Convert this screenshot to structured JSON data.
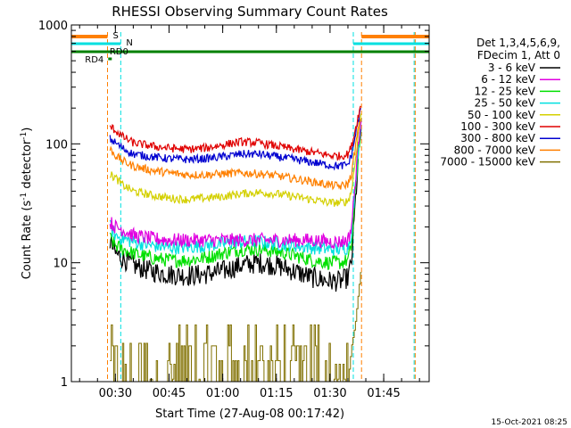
{
  "chart_data": {
    "type": "line",
    "title": "RHESSI Observing Summary Count Rates",
    "xlabel": "Start Time (27-Aug-08 00:17:42)",
    "ylabel_main": "Count Rate (s",
    "ylabel_sup1": "-1",
    "ylabel_mid": " detector",
    "ylabel_sup2": "-1",
    "ylabel_end": ")",
    "yscale": "log",
    "ylim": [
      1,
      1000
    ],
    "xlim_minutes": [
      17.7,
      117.7
    ],
    "y_ticks": [
      {
        "value": 1,
        "label": "1"
      },
      {
        "value": 10,
        "label": "10"
      },
      {
        "value": 100,
        "label": "100"
      },
      {
        "value": 1000,
        "label": "1000"
      }
    ],
    "x_ticks": [
      {
        "minute": 30,
        "label": "00:30"
      },
      {
        "minute": 45,
        "label": "00:45"
      },
      {
        "minute": 60,
        "label": "01:00"
      },
      {
        "minute": 75,
        "label": "01:15"
      },
      {
        "minute": 90,
        "label": "01:30"
      },
      {
        "minute": 105,
        "label": "01:45"
      }
    ],
    "legend_header": [
      "Det 1,3,4,5,6,9,",
      "FDecim 1, Att 0"
    ],
    "legend_position": "right",
    "data_start_minute": 28.5,
    "data_end_minute": 98.8,
    "series": [
      {
        "name": "3 - 6 keV",
        "color": "#000000",
        "x": [
          28.5,
          30,
          32,
          35,
          40,
          45,
          50,
          55,
          60,
          65,
          70,
          75,
          80,
          85,
          90,
          93,
          95,
          96,
          97,
          98,
          98.8
        ],
        "y": [
          15,
          12,
          11,
          9.5,
          8.5,
          8,
          7.8,
          8,
          8.5,
          9.5,
          10,
          9.5,
          8.5,
          7.5,
          7,
          7,
          7.5,
          10,
          30,
          80,
          150
        ]
      },
      {
        "name": "6 - 12 keV",
        "color": "#e000e0",
        "x": [
          28.5,
          30,
          32,
          35,
          40,
          45,
          50,
          55,
          60,
          65,
          70,
          75,
          80,
          85,
          90,
          93,
          95,
          96,
          97,
          98,
          98.8
        ],
        "y": [
          22,
          20,
          19,
          17,
          16,
          15.5,
          15.5,
          15.5,
          15.5,
          15.5,
          15.5,
          15.5,
          15.5,
          15.5,
          15,
          15,
          15.5,
          20,
          45,
          110,
          185
        ]
      },
      {
        "name": "12 - 25 keV",
        "color": "#00e000",
        "x": [
          28.5,
          30,
          32,
          35,
          40,
          45,
          50,
          55,
          60,
          65,
          70,
          75,
          80,
          85,
          90,
          93,
          95,
          96,
          97,
          98,
          98.8
        ],
        "y": [
          16,
          14,
          13,
          12,
          11,
          10.5,
          10.5,
          11,
          12,
          13,
          13,
          12.5,
          11.5,
          10.5,
          10,
          10,
          10.5,
          14,
          35,
          90,
          160
        ]
      },
      {
        "name": "25 - 50 keV",
        "color": "#00e0e0",
        "x": [
          28.5,
          30,
          32,
          35,
          40,
          45,
          50,
          55,
          60,
          65,
          70,
          75,
          80,
          85,
          90,
          93,
          95,
          96,
          97,
          98,
          98.8
        ],
        "y": [
          20,
          17,
          16,
          15,
          14,
          13.5,
          13.5,
          14,
          14.5,
          15,
          15,
          14.5,
          14,
          13.5,
          13,
          13,
          13.5,
          18,
          40,
          100,
          170
        ]
      },
      {
        "name": "50 - 100 keV",
        "color": "#d4d000",
        "x": [
          28.5,
          30,
          32,
          35,
          40,
          45,
          50,
          55,
          60,
          65,
          70,
          75,
          80,
          85,
          90,
          93,
          95,
          96,
          97,
          98,
          98.8
        ],
        "y": [
          55,
          52,
          45,
          40,
          37,
          35,
          34,
          35,
          36,
          38,
          39,
          38,
          36,
          34,
          32,
          32,
          33,
          40,
          70,
          130,
          190
        ]
      },
      {
        "name": "100 - 300 keV",
        "color": "#e00000",
        "x": [
          28.5,
          30,
          32,
          35,
          40,
          45,
          50,
          55,
          60,
          65,
          70,
          75,
          80,
          85,
          90,
          93,
          95,
          96,
          97,
          98,
          98.8
        ],
        "y": [
          140,
          130,
          115,
          102,
          96,
          92,
          90,
          92,
          98,
          104,
          102,
          96,
          90,
          85,
          80,
          79,
          82,
          95,
          130,
          180,
          215
        ]
      },
      {
        "name": "300 - 800 keV",
        "color": "#0000d0",
        "x": [
          28.5,
          30,
          32,
          35,
          40,
          45,
          50,
          55,
          60,
          65,
          70,
          75,
          80,
          85,
          90,
          93,
          95,
          96,
          97,
          98,
          98.8
        ],
        "y": [
          110,
          102,
          92,
          82,
          78,
          75,
          74,
          75,
          78,
          82,
          82,
          78,
          74,
          70,
          66,
          65,
          67,
          80,
          115,
          165,
          200
        ]
      },
      {
        "name": "800 - 7000 keV",
        "color": "#ff8000",
        "x": [
          28.5,
          30,
          32,
          35,
          40,
          45,
          50,
          55,
          60,
          65,
          70,
          75,
          80,
          85,
          90,
          93,
          95,
          96,
          97,
          98,
          98.8
        ],
        "y": [
          90,
          80,
          72,
          65,
          60,
          57,
          55,
          55,
          56,
          57,
          56,
          54,
          51,
          48,
          45,
          44,
          46,
          55,
          90,
          140,
          175
        ]
      },
      {
        "name": "7000 - 15000 keV",
        "color": "#807000",
        "x": [
          28.5,
          29.5,
          30.5,
          31.5,
          40,
          41,
          42,
          44,
          46,
          48,
          50,
          52,
          54,
          56,
          58,
          60,
          62,
          64,
          66,
          68,
          70,
          72,
          74,
          76,
          78,
          80,
          82,
          84,
          86,
          95,
          96,
          97,
          98,
          98.8
        ],
        "y": [
          2,
          3,
          2,
          1,
          1,
          2,
          1.5,
          2,
          1,
          2,
          1.5,
          2,
          1,
          2,
          1.5,
          2,
          2,
          1.5,
          2,
          1.5,
          3,
          2,
          1.5,
          2,
          2,
          1.5,
          2,
          1.5,
          2,
          1,
          2,
          3,
          6,
          10
        ]
      }
    ],
    "status_bars": [
      {
        "label": "S",
        "color": "#ff8000",
        "segments": [
          [
            17.7,
            27.8
          ],
          [
            98.8,
            117.7
          ]
        ]
      },
      {
        "label": "N",
        "color": "#00e0e0",
        "segments": [
          [
            17.7,
            31.5
          ],
          [
            96.5,
            117.7
          ]
        ]
      },
      {
        "label": "RD0",
        "color": "#008000",
        "segments": [
          [
            17.7,
            117.7
          ]
        ]
      },
      {
        "label": "RD4",
        "color": "#008000",
        "segments": [
          [
            28.0,
            29.0
          ]
        ]
      }
    ],
    "vertical_markers": [
      {
        "minute": 27.8,
        "color": "#ff8000"
      },
      {
        "minute": 31.5,
        "color": "#00e0e0"
      },
      {
        "minute": 96.5,
        "color": "#00e0e0"
      },
      {
        "minute": 98.8,
        "color": "#ff8000"
      },
      {
        "minute": 113.5,
        "color": "#00e0e0"
      },
      {
        "minute": 113.8,
        "color": "#ff8000"
      }
    ]
  },
  "footer_timestamp": "15-Oct-2021 08:25"
}
